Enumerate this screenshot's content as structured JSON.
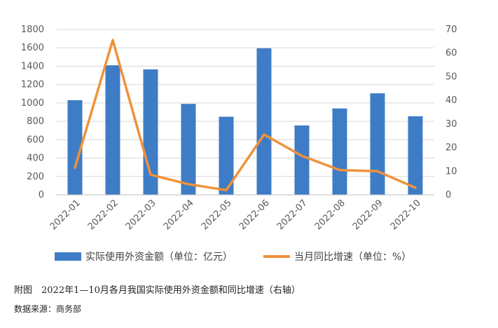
{
  "chart_data": {
    "type": "bar",
    "categories": [
      "2022-01",
      "2022-02",
      "2022-03",
      "2022-04",
      "2022-05",
      "2022-06",
      "2022-07",
      "2022-08",
      "2022-09",
      "2022-10"
    ],
    "series": [
      {
        "name": "实际使用外资金额（单位：亿元）",
        "type": "bar",
        "axis": "left",
        "color": "#3F7CC6",
        "values": [
          1030,
          1410,
          1365,
          990,
          850,
          1595,
          755,
          940,
          1105,
          855
        ]
      },
      {
        "name": "当月同比增速（单位：%）",
        "type": "line",
        "axis": "right",
        "color": "#F0923A",
        "values": [
          11.5,
          65.5,
          8.5,
          4.5,
          2,
          25.5,
          16.5,
          10.5,
          10,
          3
        ]
      }
    ],
    "y_left": {
      "min": 0,
      "max": 1800,
      "ticks": [
        0,
        200,
        400,
        600,
        800,
        1000,
        1200,
        1400,
        1600,
        1800
      ]
    },
    "y_right": {
      "min": 0,
      "max": 70,
      "ticks": [
        0,
        10,
        20,
        30,
        40,
        50,
        60,
        70
      ]
    },
    "grid": true,
    "legend_position": "bottom"
  },
  "caption": "附图　2022年1—10月各月我国实际使用外资金额和同比增速（右轴）",
  "source": "数据来源：商务部"
}
